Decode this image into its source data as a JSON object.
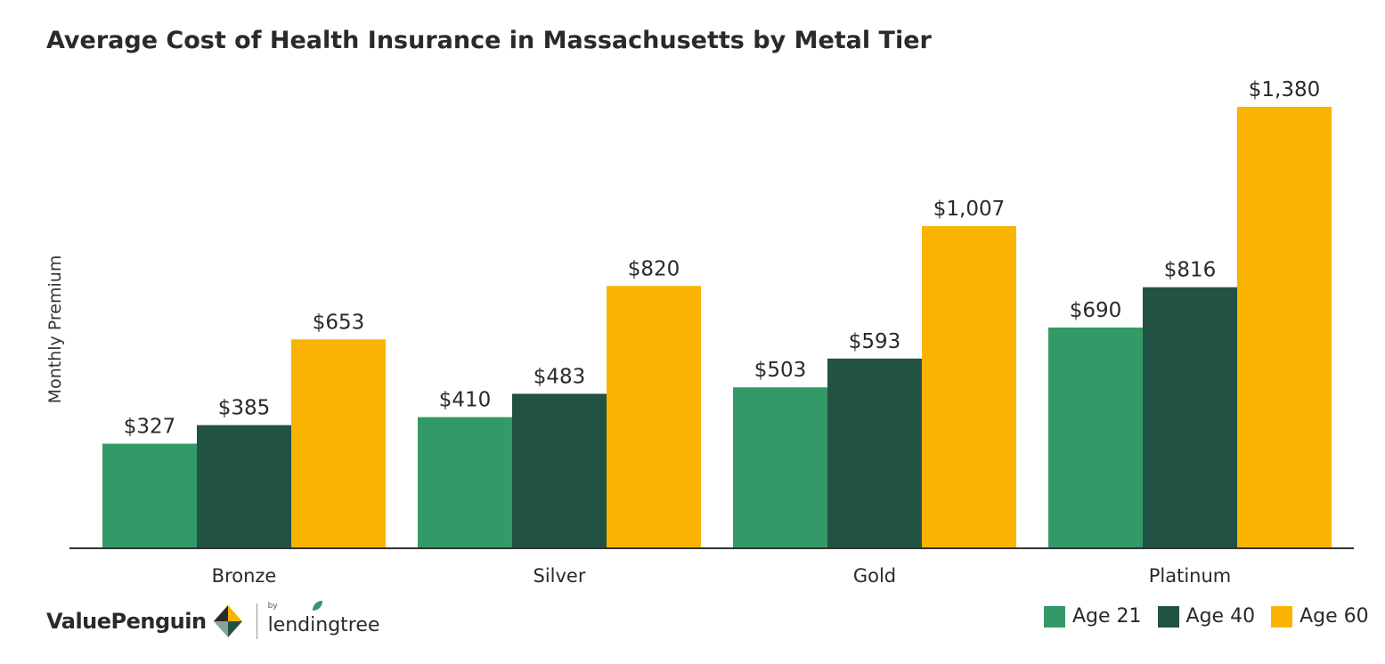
{
  "title": "Average Cost of Health Insurance in Massachusetts by Metal Tier",
  "brand": {
    "name": "ValuePenguin",
    "by": "by",
    "partner": "lendingtree"
  },
  "colors": {
    "age21": "#339966",
    "age40": "#225244",
    "age60": "#F9B300",
    "axis": "#333333"
  },
  "chart_data": {
    "type": "bar",
    "title": "Average Cost of Health Insurance in Massachusetts by Metal Tier",
    "xlabel": "",
    "ylabel": "Monthly Premium",
    "categories": [
      "Bronze",
      "Silver",
      "Gold",
      "Platinum"
    ],
    "series": [
      {
        "name": "Age 21",
        "color": "#339966",
        "values": [
          327,
          410,
          503,
          690
        ],
        "labels": [
          "$327",
          "$410",
          "$503",
          "$690"
        ]
      },
      {
        "name": "Age 40",
        "color": "#225244",
        "values": [
          385,
          483,
          593,
          816
        ],
        "labels": [
          "$385",
          "$483",
          "$593",
          "$816"
        ]
      },
      {
        "name": "Age 60",
        "color": "#F9B300",
        "values": [
          653,
          820,
          1007,
          1380
        ],
        "labels": [
          "$653",
          "$820",
          "$1,007",
          "$1,380"
        ]
      }
    ],
    "ylim": [
      0,
      1380
    ],
    "grid": false,
    "legend": "bottom-right"
  }
}
